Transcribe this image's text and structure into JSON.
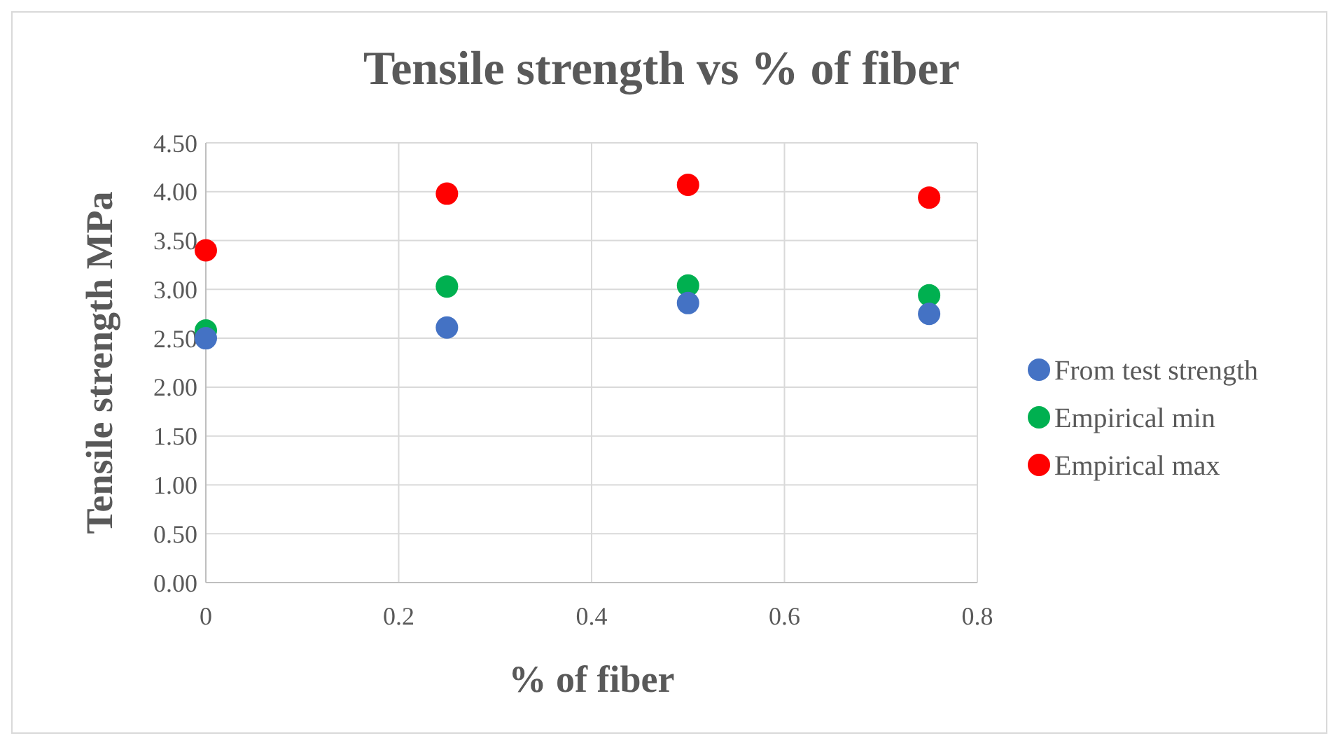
{
  "chart_data": {
    "type": "scatter",
    "title": "Tensile strength vs % of fiber",
    "xlabel": "% of fiber",
    "ylabel": "Tensile strength MPa",
    "xlim": [
      0,
      0.8
    ],
    "xticks": [
      0,
      0.2,
      0.4,
      0.6,
      0.8
    ],
    "ylim": [
      0,
      4.5
    ],
    "yticks": [
      {
        "value": 0,
        "label": "0.00"
      },
      {
        "value": 0.5,
        "label": "0.50"
      },
      {
        "value": 1,
        "label": "1.00"
      },
      {
        "value": 1.5,
        "label": "1.50"
      },
      {
        "value": 2,
        "label": "2.00"
      },
      {
        "value": 2.5,
        "label": "2.50"
      },
      {
        "value": 3,
        "label": "3.00"
      },
      {
        "value": 3.5,
        "label": "3.50"
      },
      {
        "value": 4,
        "label": "4.00"
      },
      {
        "value": 4.5,
        "label": "4.50"
      }
    ],
    "grid": true,
    "legend": "right",
    "marker": "circle",
    "series": [
      {
        "name": "From test strength",
        "color": "#4472c4",
        "x": [
          0,
          0.25,
          0.5,
          0.75
        ],
        "values": [
          2.5,
          2.61,
          2.86,
          2.75
        ]
      },
      {
        "name": "Empirical min",
        "color": "#00b050",
        "x": [
          0,
          0.25,
          0.5,
          0.75
        ],
        "values": [
          2.58,
          3.03,
          3.04,
          2.94
        ]
      },
      {
        "name": "Empirical max",
        "color": "#ff0000",
        "x": [
          0,
          0.25,
          0.5,
          0.75
        ],
        "values": [
          3.4,
          3.98,
          4.07,
          3.94
        ]
      }
    ]
  }
}
